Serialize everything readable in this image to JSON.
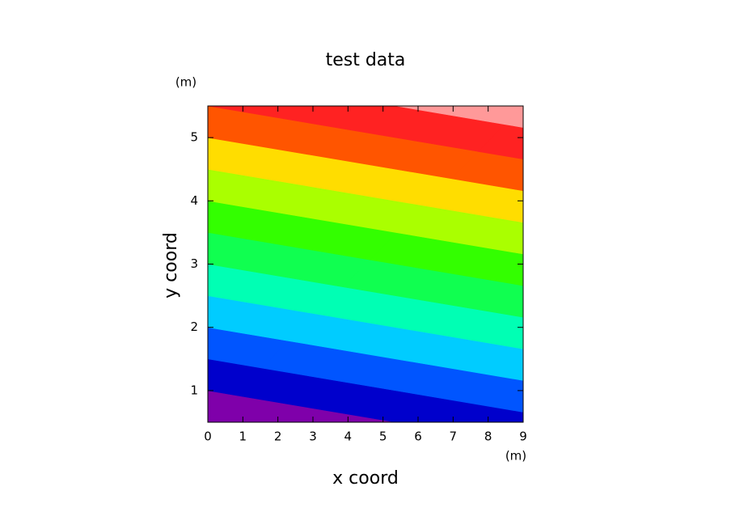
{
  "chart_data": {
    "type": "contour",
    "title": "test data",
    "x_label": "x coord",
    "y_label": "y coord",
    "x_unit": "(m)",
    "y_unit": "(m)",
    "x": [
      0,
      9
    ],
    "y": [
      0.5,
      5.5
    ],
    "z": [
      [
        0.5,
        1.34
      ],
      [
        5.5,
        6.34
      ]
    ],
    "levels": [
      1,
      1.5,
      2,
      2.5,
      3,
      3.5,
      4,
      4.5,
      5,
      5.5,
      6
    ],
    "colors": [
      "#7f00aa",
      "#0000cc",
      "#0055ff",
      "#00ccff",
      "#00ffb4",
      "#10ff50",
      "#33ff00",
      "#aaff00",
      "#ffdd00",
      "#ff5500",
      "#ff2222",
      "#ff9999"
    ],
    "xlim": [
      0,
      9
    ],
    "ylim": [
      0.5,
      5.5
    ],
    "xticks": [
      0,
      1,
      2,
      3,
      4,
      5,
      6,
      7,
      8,
      9
    ],
    "yticks": [
      1,
      2,
      3,
      4,
      5
    ]
  }
}
